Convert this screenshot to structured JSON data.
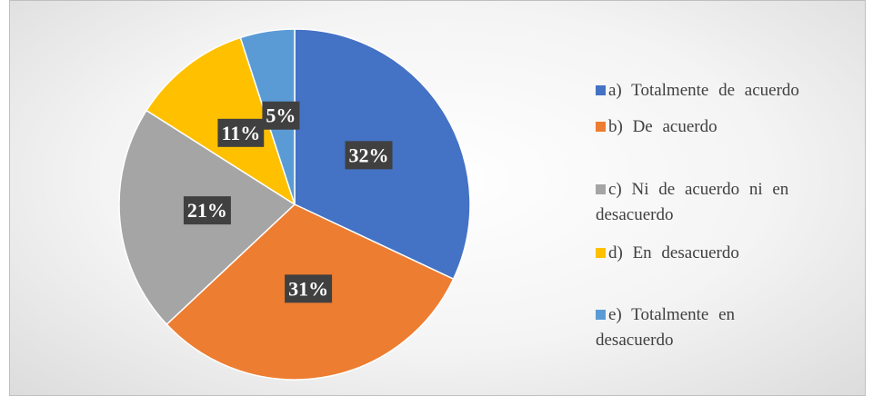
{
  "chart_data": {
    "type": "pie",
    "categories": [
      "a) Totalmente de acuerdo",
      "b) De acuerdo",
      "c) Ni de acuerdo ni en desacuerdo",
      "d) En desacuerdo",
      "e) Totalmente en desacuerdo"
    ],
    "values": [
      32,
      31,
      21,
      11,
      5
    ],
    "value_labels": [
      "32%",
      "31%",
      "21%",
      "11%",
      "5%"
    ],
    "colors": [
      "#4472c4",
      "#ed7d31",
      "#a5a5a5",
      "#ffc000",
      "#5b9bd5"
    ],
    "legend": "right"
  }
}
